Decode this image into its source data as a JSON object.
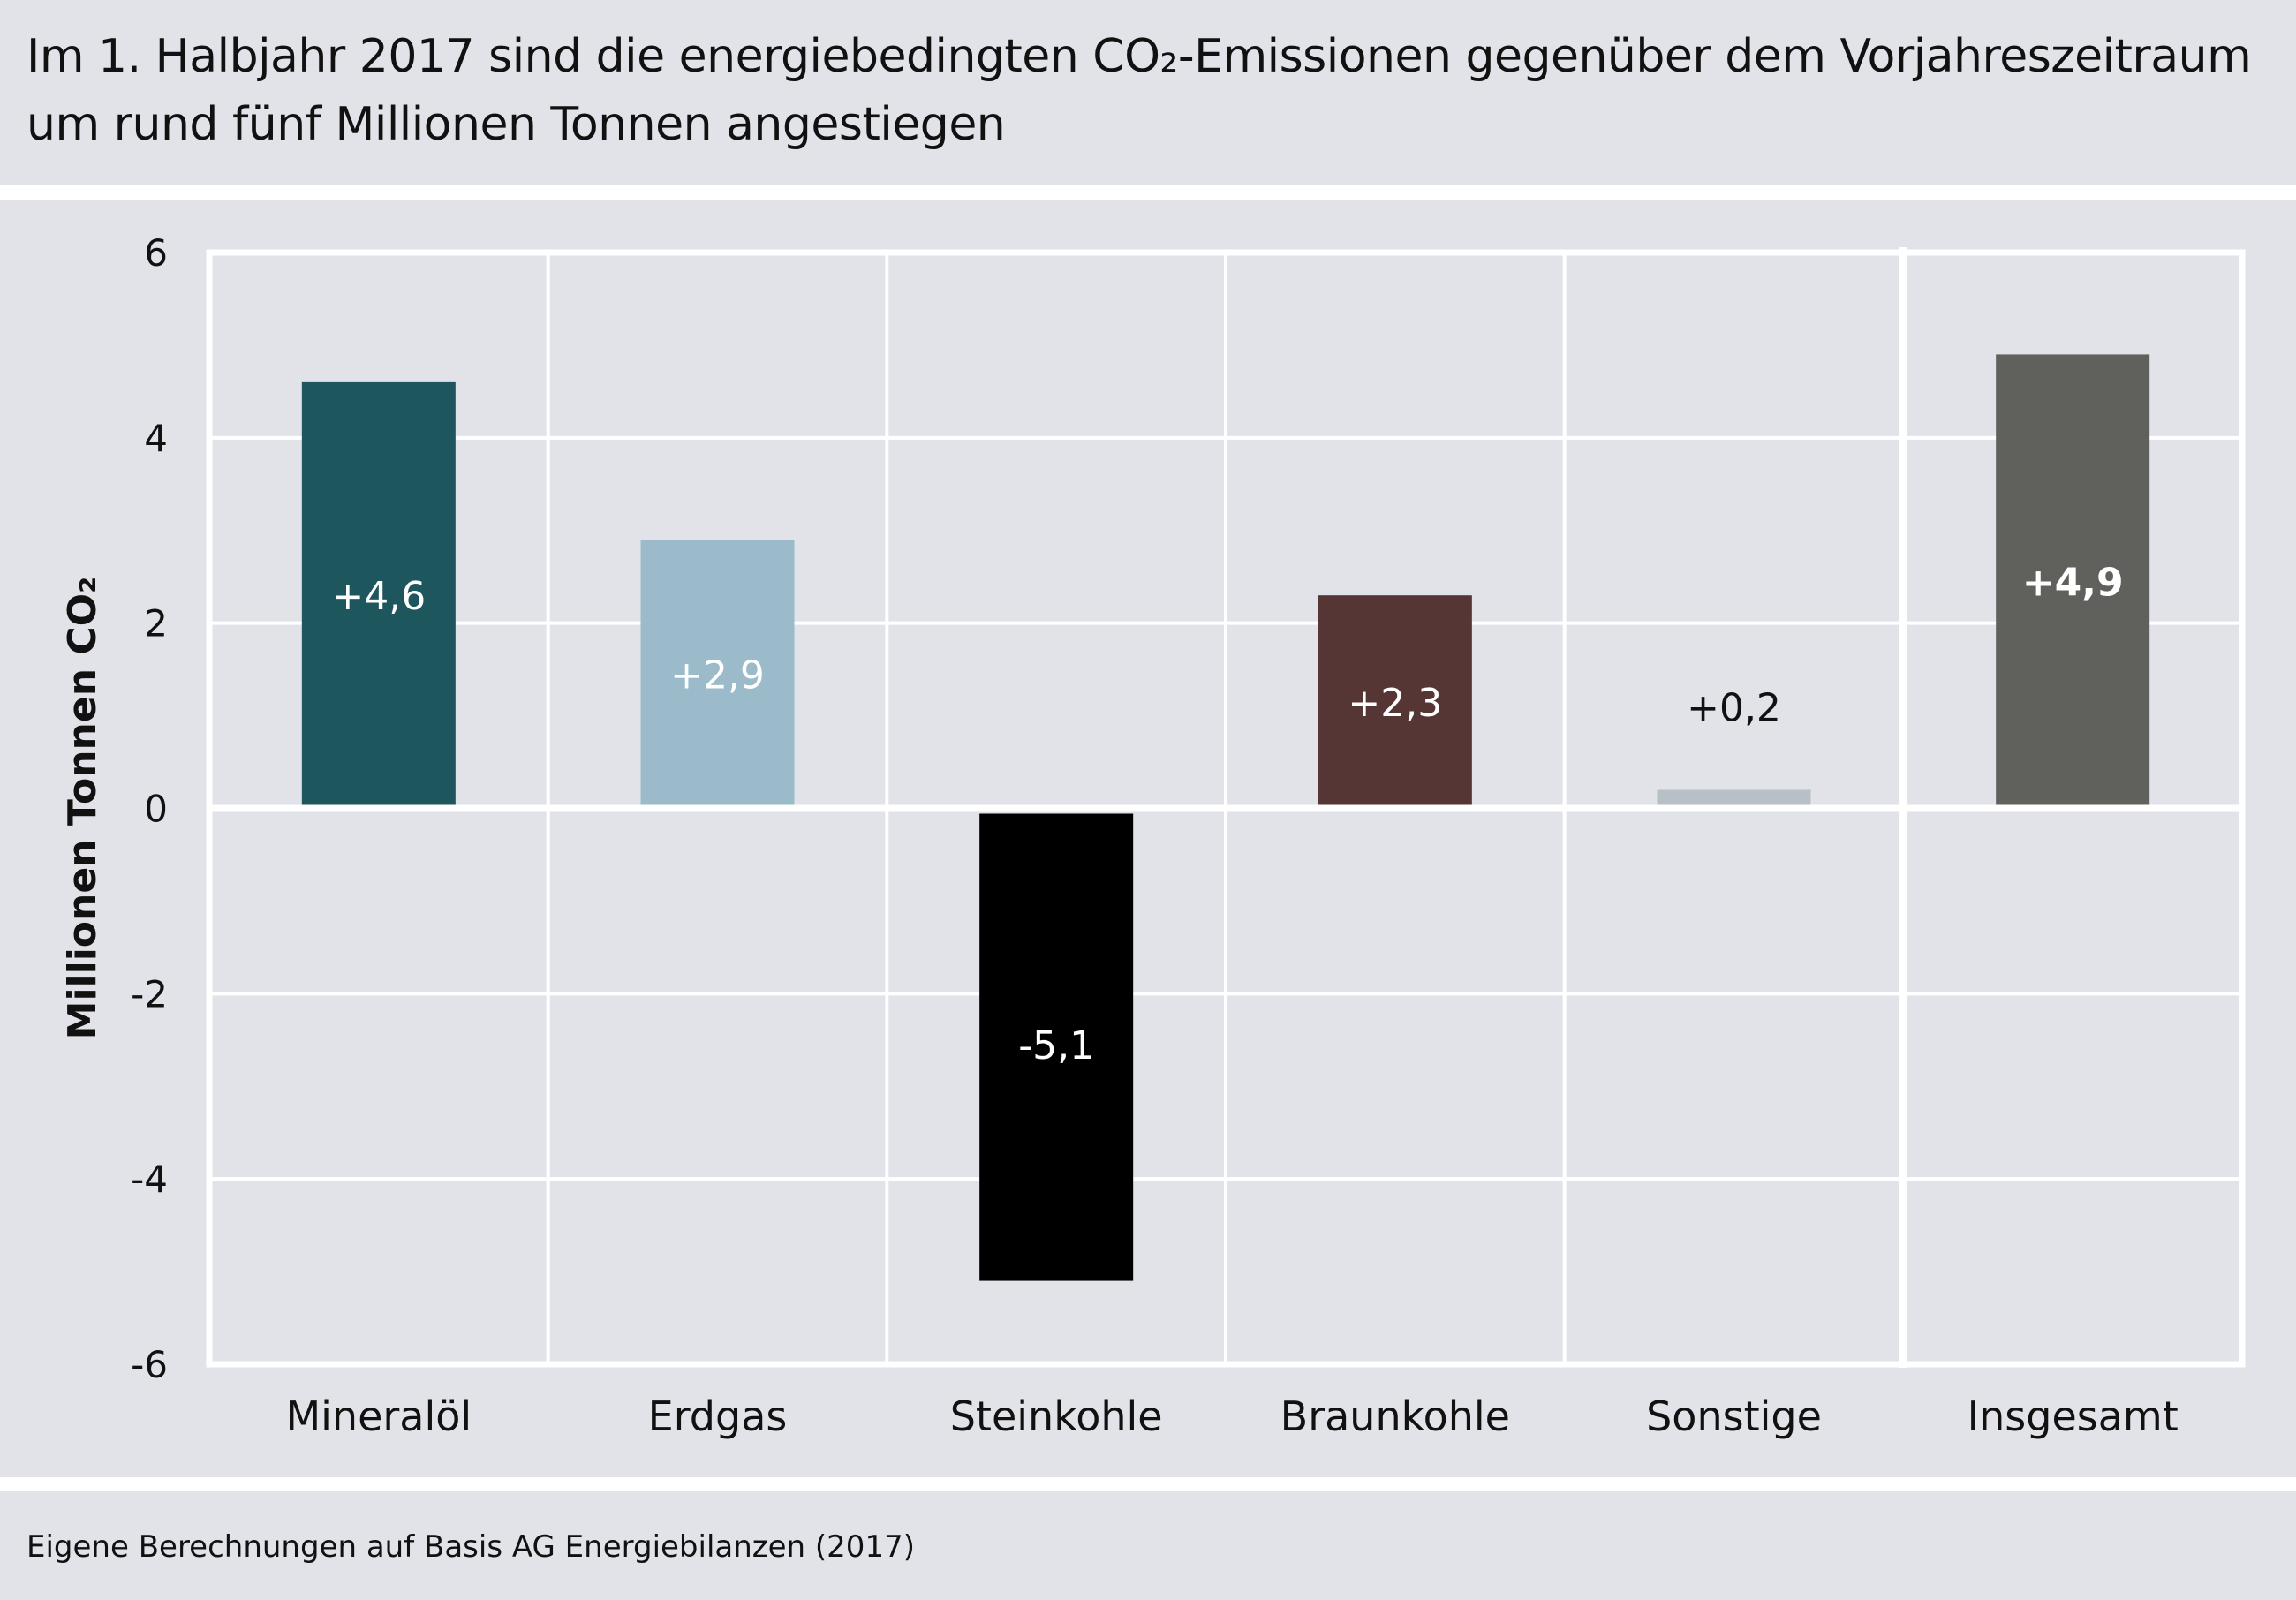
{
  "title": {
    "line1": "Im 1. Halbjahr 2017 sind die energiebedingten CO₂-Emissionen gegenüber dem Vorjahreszeitraum",
    "line2": "um rund fünf Millionen Tonnen angestiegen"
  },
  "source": "Eigene Berechnungen auf Basis AG Energiebilanzen (2017)",
  "chart_data": {
    "type": "bar",
    "title": "Im 1. Halbjahr 2017 sind die energiebedingten CO₂-Emissionen gegenüber dem Vorjahreszeitraum um rund fünf Millionen Tonnen angestiegen",
    "xlabel": "",
    "ylabel": "Millionen Tonnen CO₂",
    "ylim": [
      -6,
      6
    ],
    "yticks": [
      6,
      4,
      2,
      0,
      -2,
      -4,
      -6
    ],
    "ytick_labels": [
      "6",
      "4",
      "2",
      "0",
      "-2",
      "-4",
      "-6"
    ],
    "grid": true,
    "categories": [
      "Mineralöl",
      "Erdgas",
      "Steinkohle",
      "Braunkohle",
      "Sonstige",
      "Insgesamt"
    ],
    "values": [
      4.6,
      2.9,
      -5.1,
      2.3,
      0.2,
      4.9
    ],
    "data_labels": [
      "+4,6",
      "+2,9",
      "-5,1",
      "+2,3",
      "+0,2",
      "+4,9"
    ],
    "colors": [
      "#1e565e",
      "#9bbbcb",
      "#000000",
      "#553634",
      "#b8c0c7",
      "#60615c"
    ],
    "label_colors": [
      "#ffffff",
      "#ffffff",
      "#ffffff",
      "#ffffff",
      "#111111",
      "#ffffff"
    ],
    "label_bold": [
      false,
      false,
      false,
      false,
      false,
      true
    ],
    "label_inside": [
      true,
      true,
      true,
      true,
      false,
      true
    ]
  }
}
